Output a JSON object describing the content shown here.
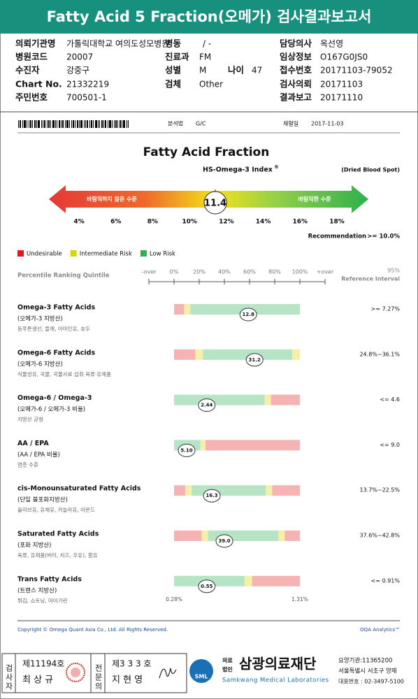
{
  "header": {
    "title": "Fatty Acid 5 Fraction(오메가) 검사결과보고서"
  },
  "info": [
    {
      "label": "의뢰기관명",
      "value": "가톨릭대학교 여의도성모병원"
    },
    {
      "label": "병동",
      "value": "/ -"
    },
    {
      "label": "담당의사",
      "value": "옥선영"
    },
    {
      "label": "병원코드",
      "value": "20007"
    },
    {
      "label": "진료과",
      "value": "FM"
    },
    {
      "label": "임상정보",
      "value": "O167G0JS0"
    },
    {
      "label": "수진자",
      "value": "강중구"
    },
    {
      "label": "성별",
      "value": "M"
    },
    {
      "label": "나이",
      "value": "47"
    },
    {
      "label": "접수번호",
      "value": "20171103-79052"
    },
    {
      "label": "Chart No.",
      "value": "21332219"
    },
    {
      "label": "검체",
      "value": "Other"
    },
    {
      "label": "검사의뢰",
      "value": "20171103"
    },
    {
      "label": "주민번호",
      "value": "700501-1"
    },
    {
      "label": "결과보고",
      "value": "20171110"
    }
  ],
  "sample": {
    "method_label": "분석법",
    "method": "G/C",
    "date_label": "채혈일",
    "date": "2017-11-03"
  },
  "gauge": {
    "title": "Fatty Acid Fraction",
    "index_name": "HS-Omega-3 Index",
    "index_mark": "®",
    "sample_type": "(Dried Blood Spot)",
    "left_text": "바람직하지 않은 수준",
    "right_text": "바람직한 수준",
    "value": 11.4,
    "ticks": [
      {
        "value": 4,
        "label": "4%"
      },
      {
        "value": 6,
        "label": "6%"
      },
      {
        "value": 8,
        "label": "8%"
      },
      {
        "value": 10,
        "label": "10%"
      },
      {
        "value": 12,
        "label": "12%"
      },
      {
        "value": 14,
        "label": "14%"
      },
      {
        "value": 16,
        "label": "16%"
      },
      {
        "value": 18,
        "label": "18%"
      }
    ],
    "recommendation_label": "Recommendation",
    "recommendation": ">= 10.0%"
  },
  "legend": [
    {
      "name": "Undesirable",
      "color": "#e8151b"
    },
    {
      "name": "Intermediate Risk",
      "color": "#d6d600"
    },
    {
      "name": "Low Risk",
      "color": "#2bb24c"
    }
  ],
  "quintile": {
    "title": "Percentile Ranking Quintile",
    "xlim": [
      -20,
      120
    ],
    "ticks": [
      {
        "value": -20,
        "label": "-over"
      },
      {
        "value": 0,
        "label": "0%"
      },
      {
        "value": 20,
        "label": "20%"
      },
      {
        "value": 40,
        "label": "40%"
      },
      {
        "value": 60,
        "label": "60%"
      },
      {
        "value": 80,
        "label": "80%"
      },
      {
        "value": 100,
        "label": "100%"
      },
      {
        "value": 120,
        "label": "+over"
      }
    ],
    "reference_title": "95%",
    "reference_subtitle": "Reference Interval"
  },
  "rows": [
    {
      "name": "Omega-3 Fatty Acids",
      "korean": "(오메가-3 지방산)",
      "foods": "등푸른생선, 들깨, 아마인유, 호두",
      "value": "12.8",
      "percentile": 59,
      "reference": ">= 7.27%",
      "zones": [
        {
          "color": "#f6b3b3",
          "to": 8
        },
        {
          "color": "#f5f0a6",
          "to": 13
        },
        {
          "color": "#b6e4c4",
          "to": 100
        }
      ]
    },
    {
      "name": "Omega-6 Fatty Acids",
      "korean": "(오메가-6 지방산)",
      "foods": "식물성유, 곡물, 곡물사료 섭취 육류·유제품",
      "value": "31.2",
      "percentile": 64,
      "reference": "24.8%~36.1%",
      "zones": [
        {
          "color": "#f6b3b3",
          "to": 17
        },
        {
          "color": "#f5f0a6",
          "to": 23
        },
        {
          "color": "#b6e4c4",
          "to": 94
        },
        {
          "color": "#f5f0a6",
          "to": 100
        }
      ]
    },
    {
      "name": "Omega-6 / Omega-3",
      "korean": "(오메가-6 / 오메가-3 비율)",
      "foods": "지방산 균형",
      "value": "2.44",
      "percentile": 26,
      "reference": "<= 4.6",
      "zones": [
        {
          "color": "#b6e4c4",
          "to": 72
        },
        {
          "color": "#f5f0a6",
          "to": 77
        },
        {
          "color": "#f6b3b3",
          "to": 100
        }
      ]
    },
    {
      "name": "AA / EPA",
      "korean": "(AA / EPA 비율)",
      "foods": "염증 수준",
      "value": "5.10",
      "percentile": 10,
      "reference": "<= 9.0",
      "zones": [
        {
          "color": "#b6e4c4",
          "to": 21
        },
        {
          "color": "#f5f0a6",
          "to": 25
        },
        {
          "color": "#f6b3b3",
          "to": 100
        }
      ]
    },
    {
      "name": "cis-Monounsaturated Fatty Acids",
      "korean": "(단일 불포화지방산)",
      "foods": "올리브유, 유채유, 카놀라유, 아몬드",
      "value": "16.3",
      "percentile": 30,
      "reference": "13.7%~22.5%",
      "zones": [
        {
          "color": "#f6b3b3",
          "to": 9
        },
        {
          "color": "#f5f0a6",
          "to": 14
        },
        {
          "color": "#b6e4c4",
          "to": 73
        },
        {
          "color": "#f5f0a6",
          "to": 78
        },
        {
          "color": "#f6b3b3",
          "to": 100
        }
      ]
    },
    {
      "name": "Saturated Fatty Acids",
      "korean": "(포화 지방산)",
      "foods": "육류, 유제품(버터, 치즈, 우유), 팜유",
      "value": "39.0",
      "percentile": 40,
      "reference": "37.6%~42.8%",
      "zones": [
        {
          "color": "#f6b3b3",
          "to": 22
        },
        {
          "color": "#f5f0a6",
          "to": 27
        },
        {
          "color": "#b6e4c4",
          "to": 83
        },
        {
          "color": "#f5f0a6",
          "to": 88
        },
        {
          "color": "#f6b3b3",
          "to": 100
        }
      ]
    },
    {
      "name": "Trans Fatty Acids",
      "korean": "(트랜스 지방산)",
      "foods": "튀김, 쇼트닝, 마아가린",
      "value": "0.55",
      "percentile": 26,
      "reference": "<= 0.91%",
      "zones": [
        {
          "color": "#b6e4c4",
          "to": 56
        },
        {
          "color": "#f5f0a6",
          "to": 62
        },
        {
          "color": "#f6b3b3",
          "to": 100
        }
      ],
      "range_min": "0.28%",
      "range_max": "1.31%"
    }
  ],
  "footer": {
    "copyright": "Copyright © Omega Quant Asia Co., Ltd.  All Rights Reserved.",
    "brand": "OQA Analytics™"
  },
  "signatures": {
    "tester_title": "검사자",
    "tester_no": "제11194호",
    "tester_name": "최 상 규",
    "doctor_title": "전문의",
    "doctor_no": "제3 3 3 호",
    "doctor_name": "지 현 영"
  },
  "institution": {
    "logo": "SML",
    "type_top": "의료",
    "type_bottom": "법인",
    "name": "삼광의료재단",
    "english": "Samkwang Medical Laboratories",
    "code": "요양기관:11365200",
    "address": "서울특별시 서초구 양재",
    "phone": "대표번호 : 02-3497-5100"
  }
}
